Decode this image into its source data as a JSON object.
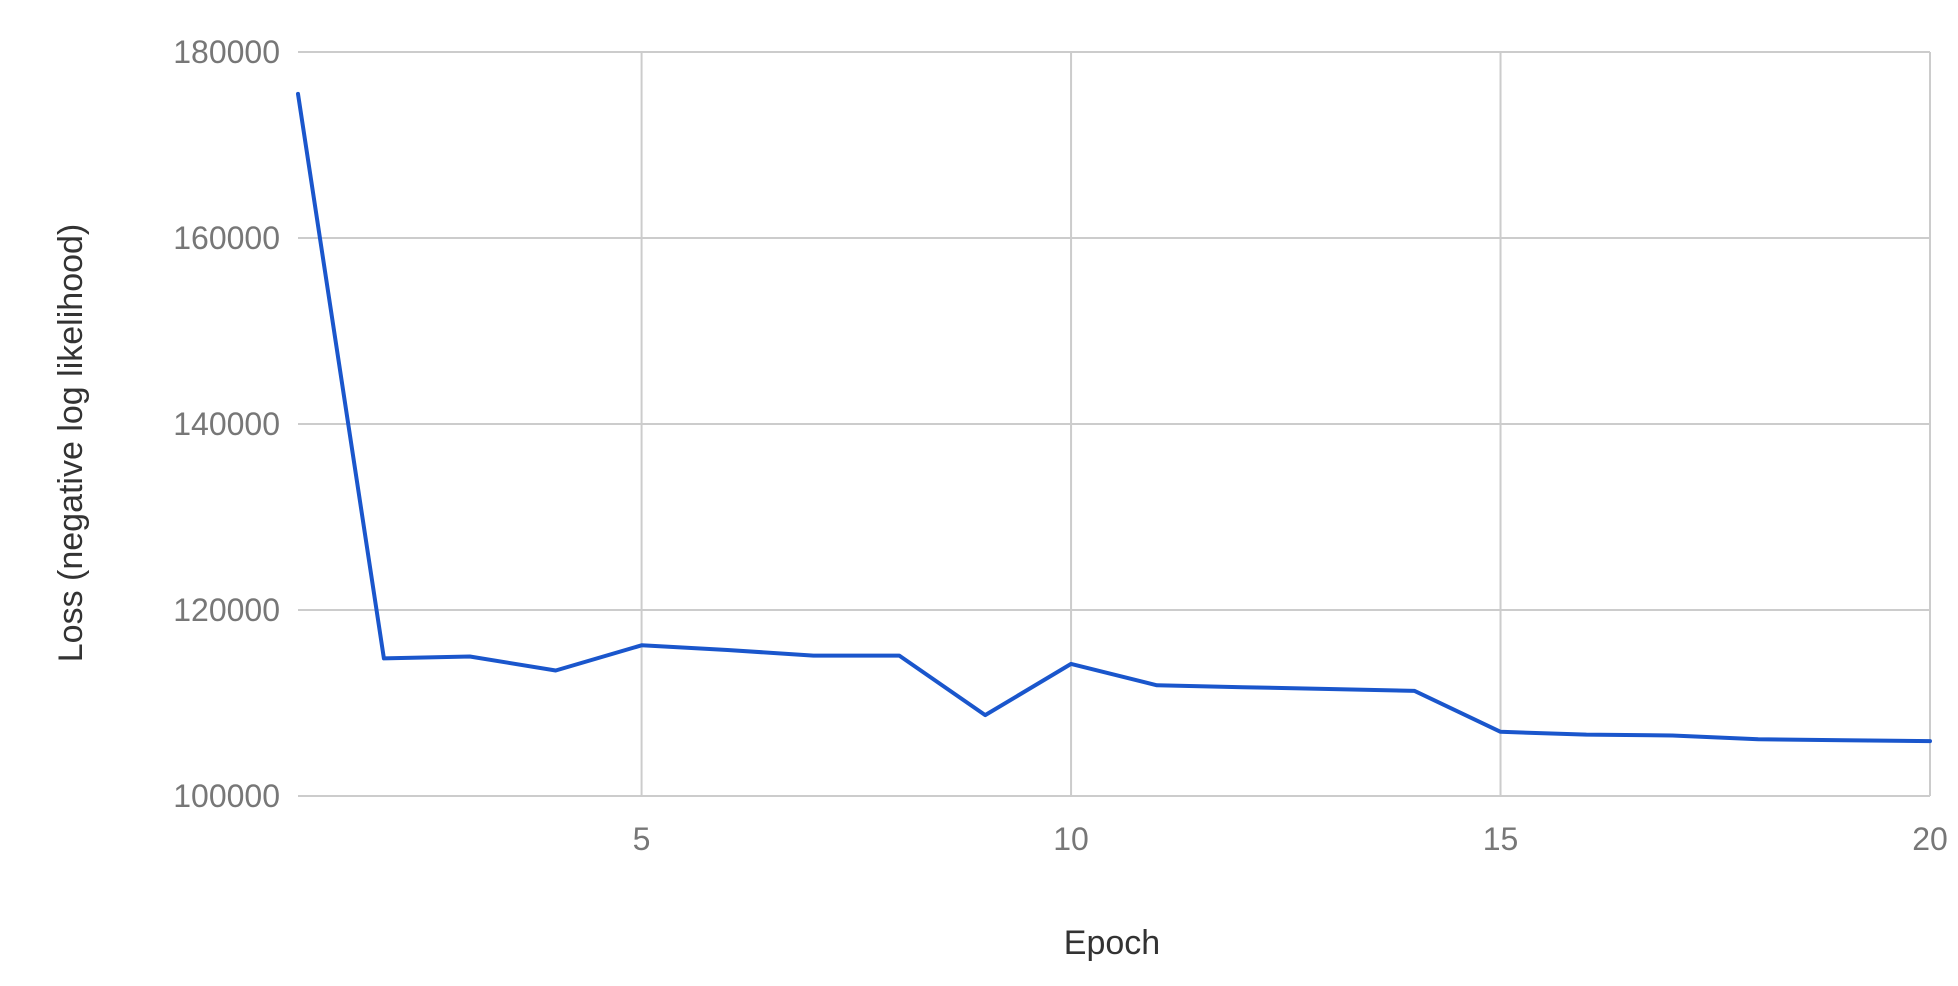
{
  "chart_data": {
    "type": "line",
    "xlabel": "Epoch",
    "ylabel": "Loss (negative log likelihood)",
    "xlim": [
      1,
      20
    ],
    "ylim": [
      100000,
      180000
    ],
    "x_ticks": [
      5,
      10,
      15,
      20
    ],
    "y_ticks": [
      100000,
      120000,
      140000,
      160000,
      180000
    ],
    "grid": true,
    "legend": "none",
    "series": [
      {
        "color": "#1a56cc",
        "x": [
          1,
          2,
          3,
          4,
          5,
          6,
          7,
          8,
          9,
          10,
          11,
          12,
          13,
          14,
          15,
          16,
          17,
          18,
          19,
          20
        ],
        "y": [
          175500,
          114800,
          115000,
          113500,
          116200,
          115700,
          115100,
          115100,
          108700,
          114200,
          111900,
          111700,
          111500,
          111300,
          106900,
          106600,
          106500,
          106100,
          106000,
          105900
        ]
      }
    ]
  }
}
